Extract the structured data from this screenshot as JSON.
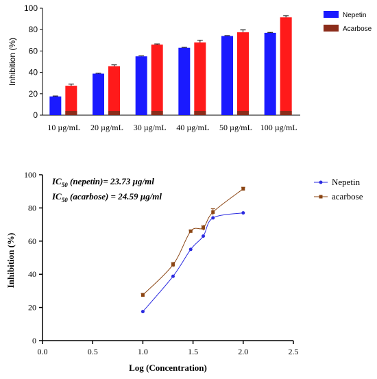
{
  "chart_data": [
    {
      "type": "bar",
      "ylabel": "Inhibition (%)",
      "xlabel": "",
      "ylim": [
        0,
        100
      ],
      "yticks": [
        "0",
        "20",
        "40",
        "60",
        "80",
        "100"
      ],
      "categories": [
        "10 µg/mL",
        "20 µg/mL",
        "30 µg/mL",
        "40 µg/mL",
        "50 µg/mL",
        "100  µg/mL"
      ],
      "series": [
        {
          "name": "Nepetin",
          "color": "#1a1aff",
          "values": [
            17.5,
            38.8,
            55.0,
            63.0,
            74.0,
            77.0
          ],
          "errors": [
            0.4,
            0.4,
            0.4,
            0.4,
            0.4,
            0.4
          ]
        },
        {
          "name": "Acarbose",
          "color": "#ff1a1a",
          "base_color": "#8b2c1a",
          "values": [
            27.5,
            45.8,
            66.0,
            68.0,
            77.5,
            91.5
          ],
          "errors": [
            1.5,
            1.2,
            0.6,
            2.0,
            2.2,
            1.5
          ]
        }
      ],
      "legend_position": "top-right",
      "grid": false
    },
    {
      "type": "scatter",
      "xlabel": "Log (Concentration)",
      "ylabel": "Inhibition (%)",
      "xlim": [
        0,
        2.5
      ],
      "ylim": [
        0,
        100
      ],
      "xticks": [
        "0.0",
        "0.5",
        "1.0",
        "1.5",
        "2.0",
        "2.5"
      ],
      "yticks": [
        "0",
        "20",
        "40",
        "60",
        "80",
        "100"
      ],
      "annotations": {
        "nepetin_label": "IC",
        "nepetin_sub": "50",
        "nepetin_rest": " (nepetin)= 23.73 µg/ml",
        "acarbose_label": "IC",
        "acarbose_sub": "50",
        "acarbose_rest": " (acarbose) = 24.59 µg/ml"
      },
      "series": [
        {
          "name": "Nepetin",
          "color": "#2a2ae0",
          "marker": "circle",
          "x": [
            1.0,
            1.301,
            1.477,
            1.602,
            1.699,
            2.0
          ],
          "y": [
            17.5,
            38.8,
            55.0,
            63.0,
            74.0,
            77.0
          ]
        },
        {
          "name": "acarbose",
          "color": "#8b4513",
          "marker": "square",
          "x": [
            1.0,
            1.301,
            1.477,
            1.602,
            1.699,
            2.0
          ],
          "y": [
            27.5,
            45.8,
            66.0,
            68.0,
            77.5,
            91.5
          ],
          "errors": [
            1.0,
            1.5,
            0.6,
            1.5,
            2.0,
            1.0
          ]
        }
      ],
      "legend_position": "top-right",
      "grid": false
    }
  ]
}
